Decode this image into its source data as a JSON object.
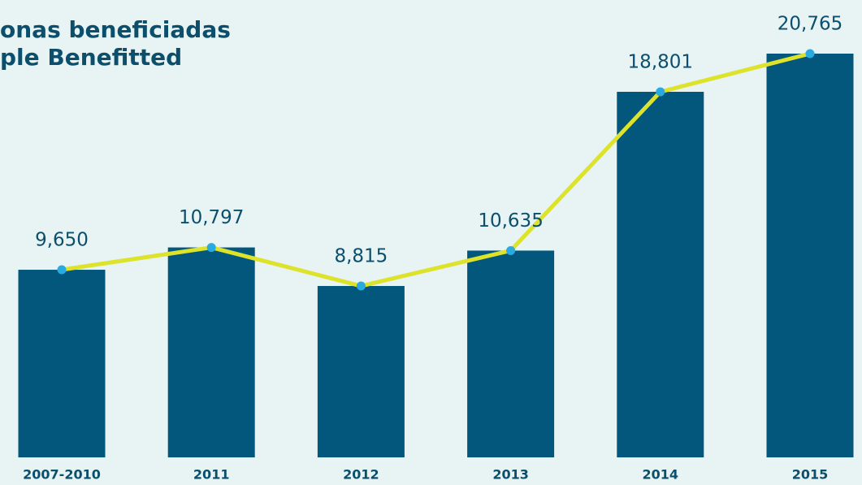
{
  "chart_data": {
    "type": "bar",
    "title": [
      "onas beneficiadas",
      "ple Benefitted"
    ],
    "categories": [
      "2007-2010",
      "2011",
      "2012",
      "2013",
      "2014",
      "2015"
    ],
    "values": [
      9650,
      10797,
      8815,
      10635,
      18801,
      20765
    ],
    "value_labels": [
      "9,650",
      "10,797",
      "8,815",
      "10,635",
      "18,801",
      "20,765"
    ],
    "color": "#04577c",
    "line": {
      "color": "#dde22a",
      "marker_color": "#29abe2"
    }
  }
}
